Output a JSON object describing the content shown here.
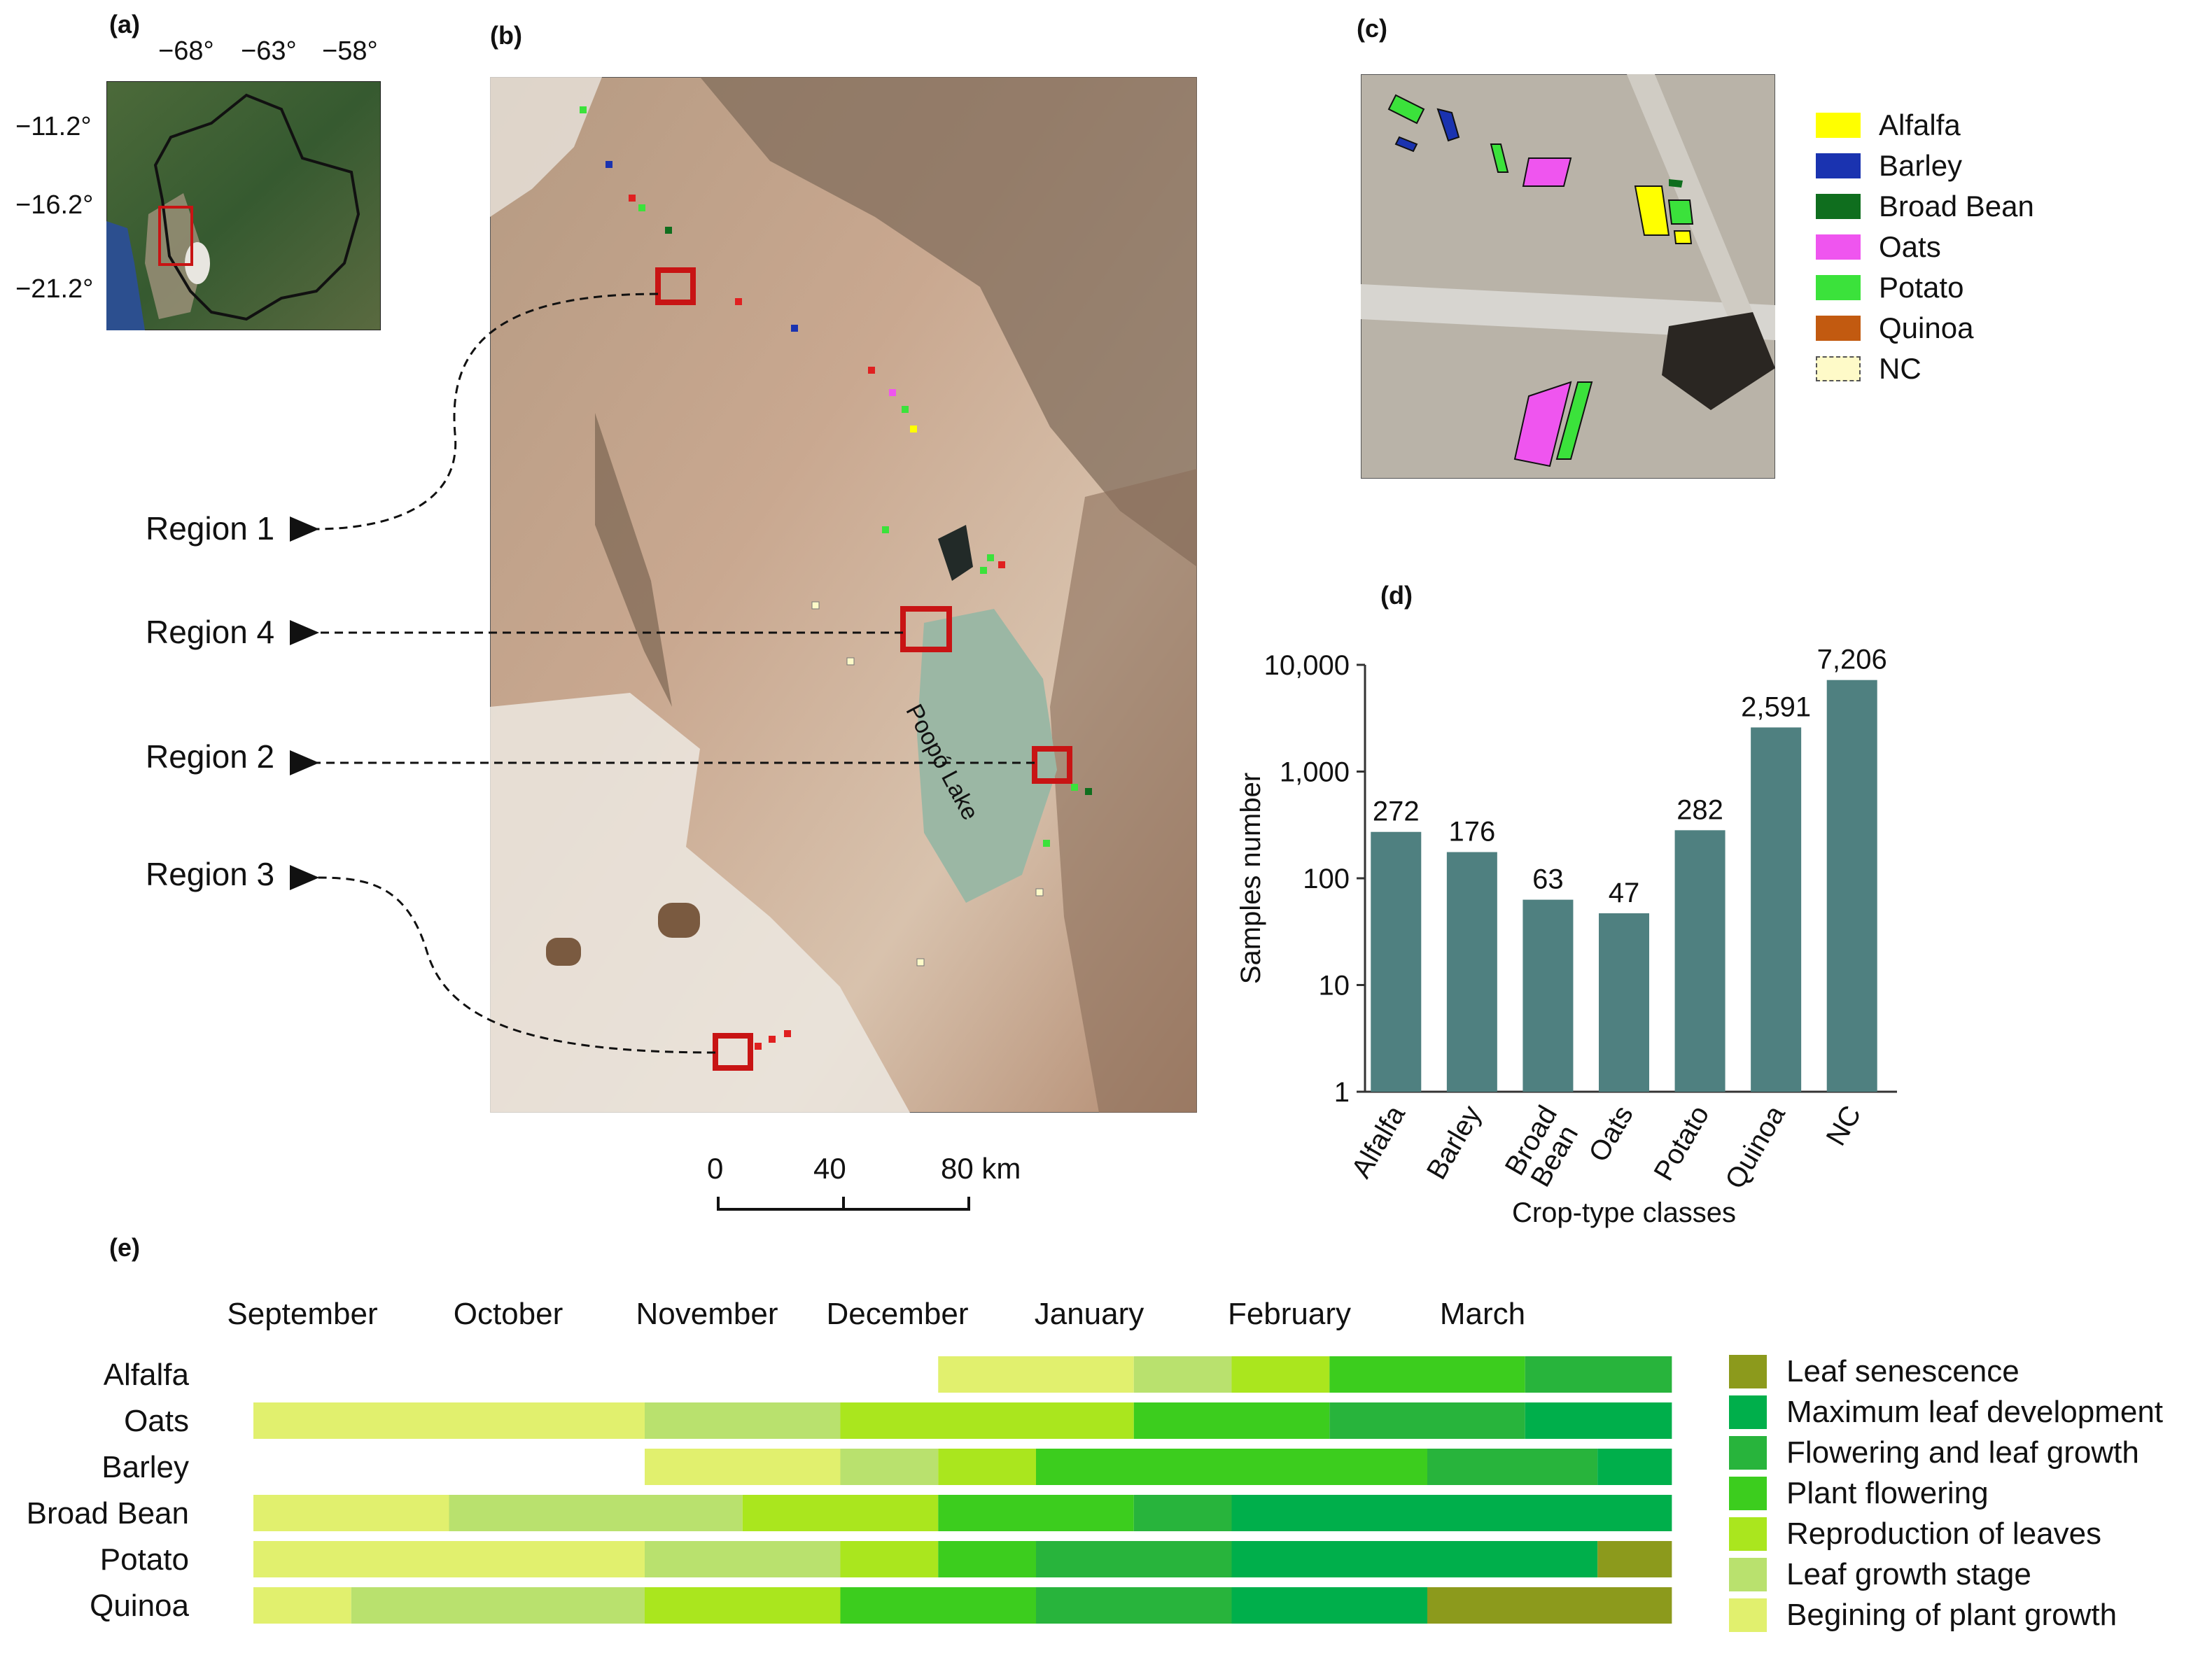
{
  "panels": {
    "a": "(a)",
    "b": "(b)",
    "c": "(c)",
    "d": "(d)",
    "e": "(e)"
  },
  "inset_map": {
    "lon_ticks": [
      "−68°",
      "−63°",
      "−58°"
    ],
    "lat_ticks": [
      "−11.2°",
      "−16.2°",
      "−21.2°"
    ]
  },
  "regions": [
    "Region 1",
    "Region 4",
    "Region 2",
    "Region 3"
  ],
  "lake_label": "Poopó Lake",
  "scale_bar": {
    "ticks": [
      "0",
      "40",
      "80 km"
    ]
  },
  "legend_c": [
    {
      "label": "Alfalfa",
      "color": "#ffff00"
    },
    {
      "label": "Barley",
      "color": "#1a33b0"
    },
    {
      "label": "Broad Bean",
      "color": "#0f6e1e"
    },
    {
      "label": "Oats",
      "color": "#ef55ef"
    },
    {
      "label": "Potato",
      "color": "#3be23b"
    },
    {
      "label": "Quinoa",
      "color": "#c25a10"
    },
    {
      "label": "NC",
      "color": "#fefac8"
    }
  ],
  "colors": {
    "bar": "#4f8080",
    "region_box": "#c81414"
  },
  "chart_data": [
    {
      "type": "bar",
      "scale": "log",
      "categories": [
        "Alfalfa",
        "Barley",
        "Broad Bean",
        "Oats",
        "Potato",
        "Quinoa",
        "NC"
      ],
      "values": [
        272,
        176,
        63,
        47,
        282,
        2591,
        7206
      ],
      "value_labels": [
        "272",
        "176",
        "63",
        "47",
        "282",
        "2,591",
        "7,206"
      ],
      "xlabel": "Crop-type classes",
      "ylabel": "Samples number",
      "ylim": [
        1,
        10000
      ],
      "yticks": [
        "1",
        "10",
        "100",
        "1,000",
        "10,000"
      ]
    },
    {
      "type": "table",
      "months": [
        "September",
        "October",
        "November",
        "December",
        "January",
        "February",
        "March"
      ],
      "stages": [
        {
          "name": "Leaf senescence",
          "color": "#8c9a1c"
        },
        {
          "name": "Maximum leaf development",
          "color": "#00af4b"
        },
        {
          "name": "Flowering and leaf growth",
          "color": "#28b43c"
        },
        {
          "name": "Plant flowering",
          "color": "#3ccd1e"
        },
        {
          "name": "Reproduction of leaves",
          "color": "#aae61e"
        },
        {
          "name": "Leaf growth stage",
          "color": "#b9e16e"
        },
        {
          "name": "Begining of plant growth",
          "color": "#e1f06e"
        }
      ],
      "crops": [
        {
          "name": "Alfalfa",
          "segments": [
            [
              3.5,
              4.5,
              "Begining of plant growth"
            ],
            [
              4.5,
              5,
              "Leaf growth stage"
            ],
            [
              5,
              5.5,
              "Reproduction of leaves"
            ],
            [
              5.5,
              6.5,
              "Plant flowering"
            ],
            [
              6.5,
              7.25,
              "Flowering and leaf growth"
            ]
          ]
        },
        {
          "name": "Oats",
          "segments": [
            [
              0,
              2,
              "Begining of plant growth"
            ],
            [
              2,
              3,
              "Leaf growth stage"
            ],
            [
              3,
              4.5,
              "Reproduction of leaves"
            ],
            [
              4.5,
              5.5,
              "Plant flowering"
            ],
            [
              5.5,
              6.5,
              "Flowering and leaf growth"
            ],
            [
              6.5,
              7.25,
              "Maximum leaf development"
            ]
          ]
        },
        {
          "name": "Barley",
          "segments": [
            [
              2,
              3,
              "Begining of plant growth"
            ],
            [
              3,
              3.5,
              "Leaf growth stage"
            ],
            [
              3.5,
              4,
              "Reproduction of leaves"
            ],
            [
              4,
              6,
              "Plant flowering"
            ],
            [
              6,
              6.87,
              "Flowering and leaf growth"
            ],
            [
              6.87,
              7.25,
              "Maximum leaf development"
            ]
          ]
        },
        {
          "name": "Broad Bean",
          "segments": [
            [
              0,
              1,
              "Begining of plant growth"
            ],
            [
              1,
              2.5,
              "Leaf growth stage"
            ],
            [
              2.5,
              3.5,
              "Reproduction of leaves"
            ],
            [
              3.5,
              4.5,
              "Plant flowering"
            ],
            [
              4.5,
              5,
              "Flowering and leaf growth"
            ],
            [
              5,
              7.25,
              "Maximum leaf development"
            ]
          ]
        },
        {
          "name": "Potato",
          "segments": [
            [
              0,
              2,
              "Begining of plant growth"
            ],
            [
              2,
              3,
              "Leaf growth stage"
            ],
            [
              3,
              3.5,
              "Reproduction of leaves"
            ],
            [
              3.5,
              4,
              "Plant flowering"
            ],
            [
              4,
              5,
              "Flowering and leaf growth"
            ],
            [
              5,
              6.87,
              "Maximum leaf development"
            ],
            [
              6.87,
              7.25,
              "Leaf senescence"
            ]
          ]
        },
        {
          "name": "Quinoa",
          "segments": [
            [
              0,
              0.5,
              "Begining of plant growth"
            ],
            [
              0.5,
              2,
              "Leaf growth stage"
            ],
            [
              2,
              3,
              "Reproduction of leaves"
            ],
            [
              3,
              4,
              "Plant flowering"
            ],
            [
              4,
              5,
              "Flowering and leaf growth"
            ],
            [
              5,
              6,
              "Maximum leaf development"
            ],
            [
              6,
              7.25,
              "Leaf senescence"
            ]
          ]
        }
      ]
    }
  ]
}
